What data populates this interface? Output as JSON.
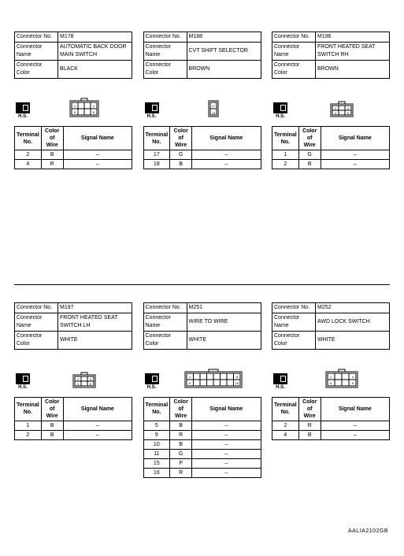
{
  "labels": {
    "connector_no": "Connector No.",
    "connector_name": "Connector Name",
    "connector_color": "Connector Color",
    "terminal_no": "Terminal No.",
    "color_of_wire": "Color of\nWire",
    "signal_name": "Signal Name",
    "hs": "H.S."
  },
  "blocks": [
    {
      "no": "M178",
      "name": "AUTOMATIC BACK DOOR MAIN SWITCH",
      "color": "BLACK",
      "draw": "a",
      "pins": [
        {
          "t": "2",
          "c": "B",
          "s": "–"
        },
        {
          "t": "4",
          "c": "R",
          "s": "–"
        }
      ]
    },
    {
      "no": "M188",
      "name": "CVT SHIFT SELECTOR",
      "color": "BROWN",
      "draw": "b",
      "pins": [
        {
          "t": "17",
          "c": "G",
          "s": "–"
        },
        {
          "t": "18",
          "c": "B",
          "s": "–"
        }
      ]
    },
    {
      "no": "M196",
      "name": "FRONT HEATED SEAT SWITCH RH",
      "color": "BROWN",
      "draw": "c",
      "pins": [
        {
          "t": "1",
          "c": "G",
          "s": "–"
        },
        {
          "t": "2",
          "c": "B",
          "s": "–"
        }
      ]
    },
    {
      "no": "M197",
      "name": "FRONT HEATED SEAT SWITCH LH",
      "color": "WHITE",
      "draw": "c",
      "pins": [
        {
          "t": "1",
          "c": "B",
          "s": "–"
        },
        {
          "t": "2",
          "c": "B",
          "s": "–"
        }
      ]
    },
    {
      "no": "M251",
      "name": "WIRE TO WIRE",
      "color": "WHITE",
      "draw": "d",
      "pins": [
        {
          "t": "5",
          "c": "B",
          "s": "–"
        },
        {
          "t": "9",
          "c": "R",
          "s": "–"
        },
        {
          "t": "10",
          "c": "B",
          "s": "–"
        },
        {
          "t": "11",
          "c": "G",
          "s": "–"
        },
        {
          "t": "15",
          "c": "P",
          "s": "–"
        },
        {
          "t": "16",
          "c": "R",
          "s": "–"
        }
      ]
    },
    {
      "no": "M252",
      "name": "AWD LOCK SWITCH",
      "color": "WHITE",
      "draw": "e",
      "pins": [
        {
          "t": "2",
          "c": "R",
          "s": "–"
        },
        {
          "t": "4",
          "c": "B",
          "s": "–"
        }
      ]
    }
  ],
  "footer": "AALIA2102GB"
}
